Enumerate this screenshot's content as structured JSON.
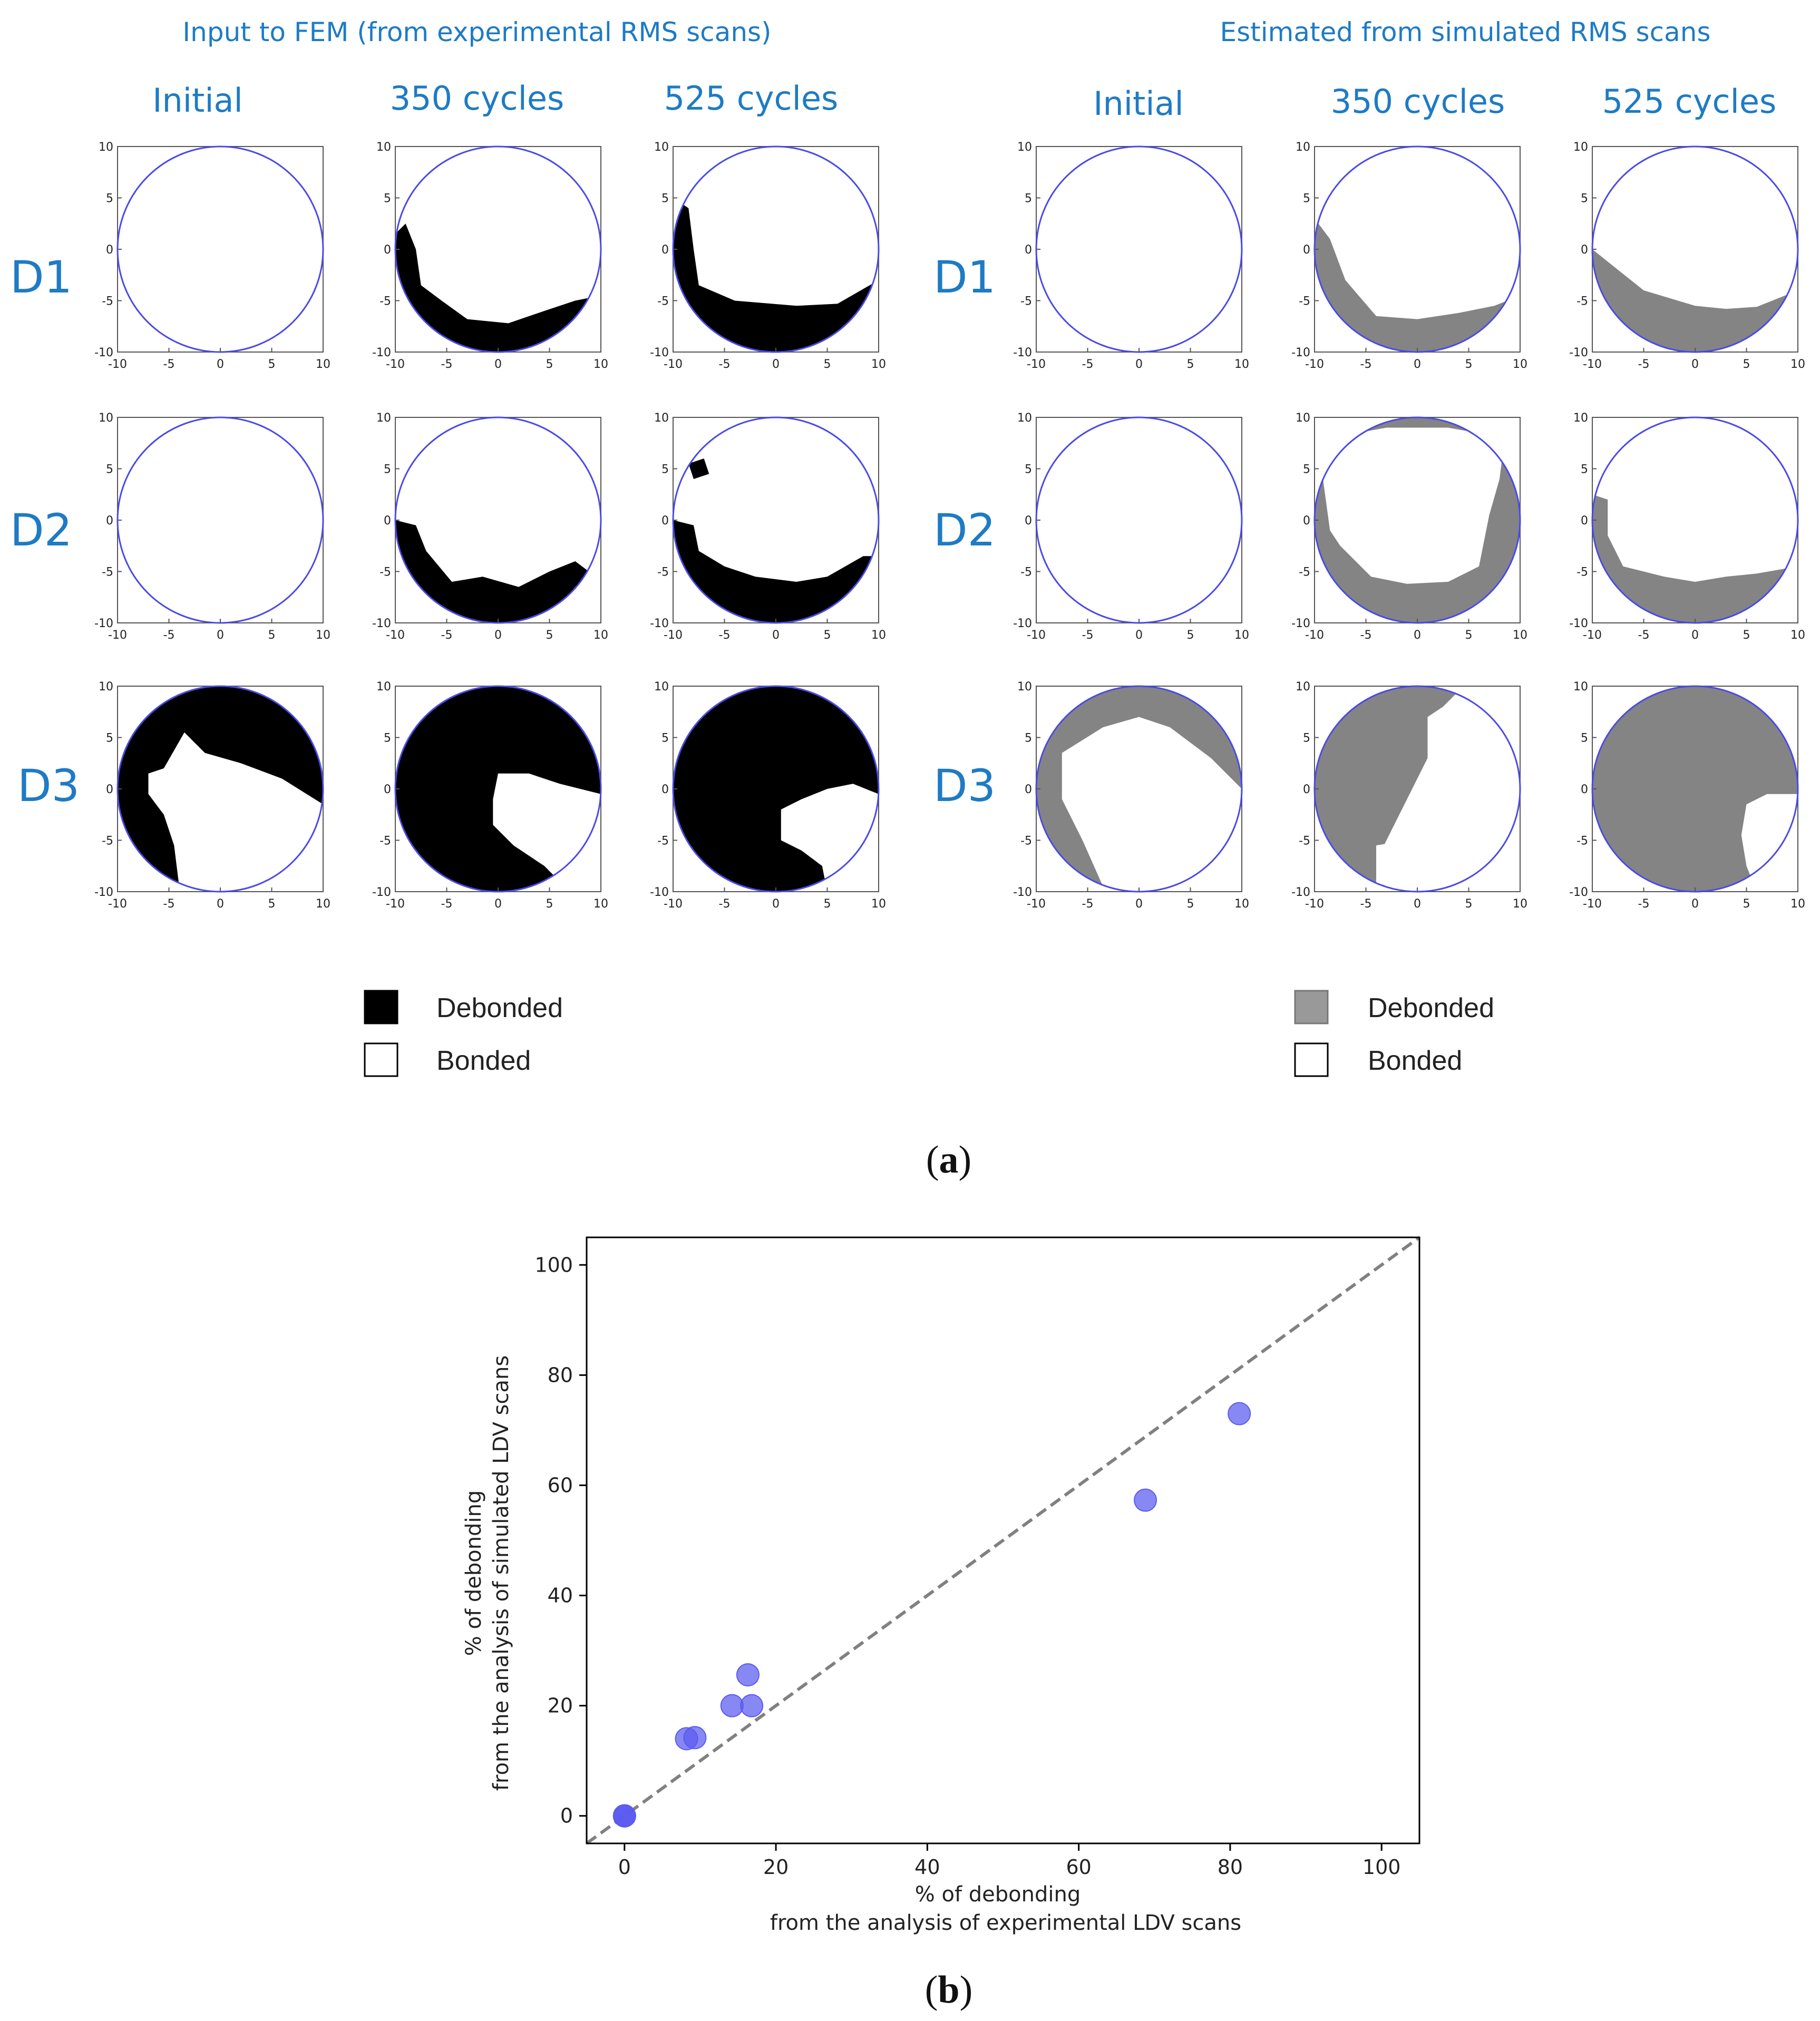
{
  "panel_a": {
    "left_header": "Input to FEM (from experimental RMS scans)",
    "right_header": "Estimated from simulated RMS scans",
    "columns": [
      "Initial",
      "350 cycles",
      "525 cycles"
    ],
    "rows": [
      "D1",
      "D2",
      "D3"
    ],
    "axis_ticks": [
      "-10",
      "-5",
      "0",
      "5",
      "10"
    ],
    "legend_left": [
      {
        "label": "Debonded",
        "color": "#000000"
      },
      {
        "label": "Bonded",
        "color": "#ffffff"
      }
    ],
    "legend_right": [
      {
        "label": "Debonded",
        "color": "#999999"
      },
      {
        "label": "Bonded",
        "color": "#ffffff"
      }
    ],
    "caption": "a",
    "colors": {
      "circle": "#4a4ae8",
      "experimental_debond": "#000000",
      "simulated_debond": "#848484",
      "header_text": "#1e7bc4"
    }
  },
  "panel_b": {
    "caption": "b",
    "chart_data": {
      "type": "scatter",
      "xlabel_line1": "% of debonding",
      "xlabel_line2": "from the analysis of experimental LDV scans",
      "ylabel_line1": "% of debonding",
      "ylabel_line2": "from the analysis of simulated LDV scans",
      "xlim": [
        -5,
        105
      ],
      "ylim": [
        -5,
        105
      ],
      "xticks": [
        0,
        20,
        40,
        60,
        80,
        100
      ],
      "yticks": [
        0,
        20,
        40,
        60,
        80,
        100
      ],
      "grid": false,
      "reference_line": "y = x (dashed, gray)",
      "marker_color": "#5a5af0",
      "points": [
        {
          "x": 0,
          "y": 0
        },
        {
          "x": 0,
          "y": 0
        },
        {
          "x": 0,
          "y": 0
        },
        {
          "x": 8.2,
          "y": 14.0
        },
        {
          "x": 9.3,
          "y": 14.2
        },
        {
          "x": 14.2,
          "y": 20.0
        },
        {
          "x": 16.3,
          "y": 25.6
        },
        {
          "x": 16.8,
          "y": 20.0
        },
        {
          "x": 68.8,
          "y": 57.3
        },
        {
          "x": 81.2,
          "y": 73.0
        }
      ]
    }
  }
}
